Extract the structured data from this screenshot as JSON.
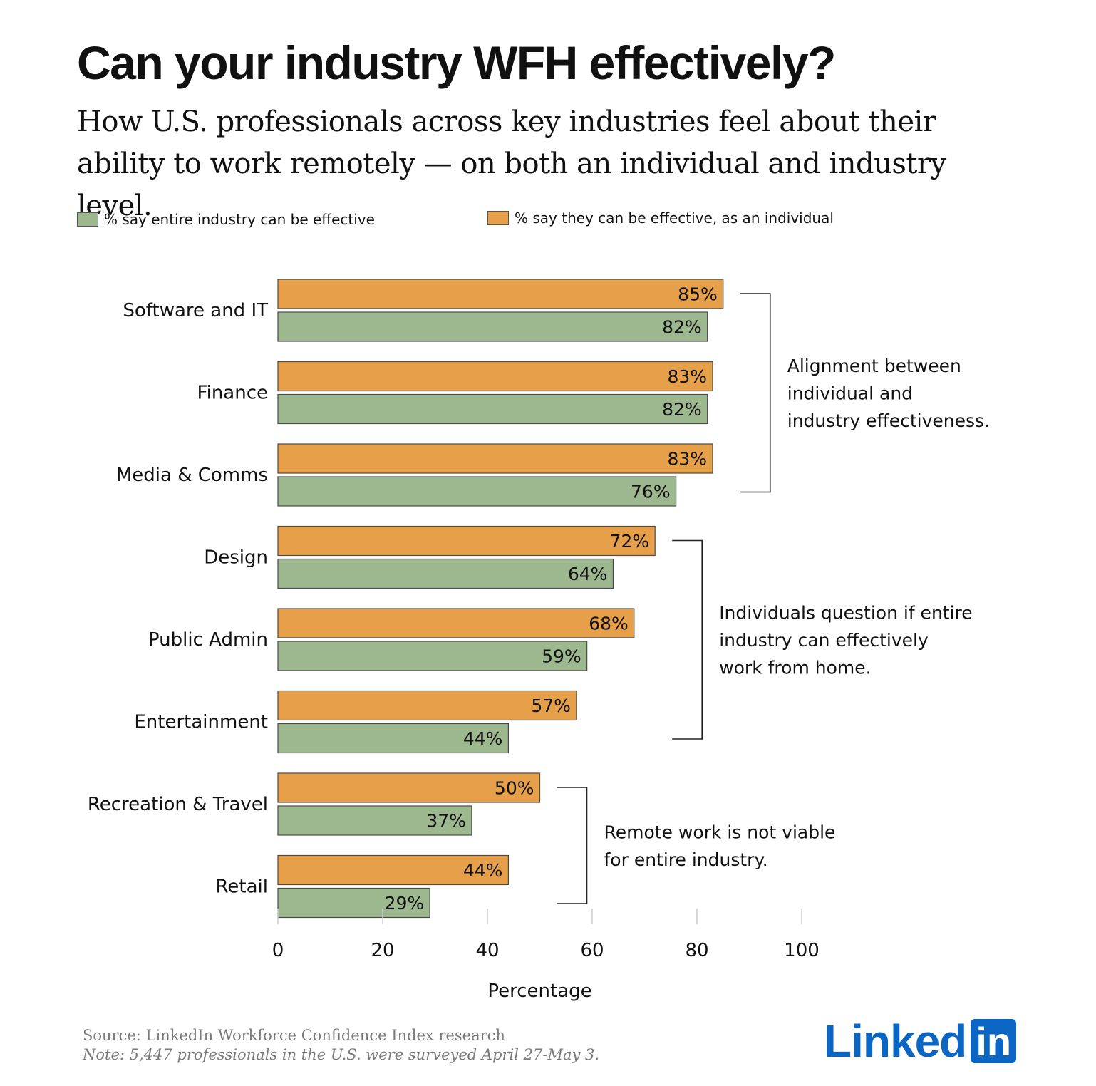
{
  "title": "Can your industry WFH effectively?",
  "subtitle": "How U.S. professionals across key industries feel about their ability to work remotely — on both an individual and industry level.",
  "legend": {
    "industry": "% say entire industry can be effective",
    "individual": "% say they can be effective, as an individual"
  },
  "colors": {
    "industry": "#9db78f",
    "individual": "#e5a049",
    "text": "#111111",
    "linkedin": "#0a66c2"
  },
  "chart_data": {
    "type": "bar",
    "orientation": "horizontal",
    "title": "Can your industry WFH effectively?",
    "xlabel": "Percentage",
    "ylabel": "",
    "xlim": [
      0,
      100
    ],
    "xticks": [
      0,
      20,
      40,
      60,
      80,
      100
    ],
    "grid": false,
    "categories": [
      "Software and IT",
      "Finance",
      "Media & Comms",
      "Design",
      "Public Admin",
      "Entertainment",
      "Recreation & Travel",
      "Retail"
    ],
    "series": [
      {
        "name": "% say they can be effective, as an individual",
        "key": "individual",
        "values": [
          85,
          83,
          83,
          72,
          68,
          57,
          50,
          44
        ]
      },
      {
        "name": "% say entire industry can be effective",
        "key": "industry",
        "values": [
          82,
          82,
          76,
          64,
          59,
          44,
          37,
          29
        ]
      }
    ],
    "annotations": [
      {
        "text": [
          "Alignment between",
          "individual and",
          "industry effectiveness."
        ],
        "from_category": 0,
        "to_category": 2
      },
      {
        "text": [
          "Individuals question if entire",
          "industry can effectively",
          "work from home."
        ],
        "from_category": 3,
        "to_category": 5
      },
      {
        "text": [
          "Remote work is not viable",
          "for entire industry."
        ],
        "from_category": 6,
        "to_category": 7
      }
    ]
  },
  "source": "Source: LinkedIn Workforce Confidence Index research",
  "note": "Note: 5,447 professionals in the U.S. were surveyed April 27-May 3.",
  "logo": {
    "text": "Linked",
    "box": "in"
  }
}
